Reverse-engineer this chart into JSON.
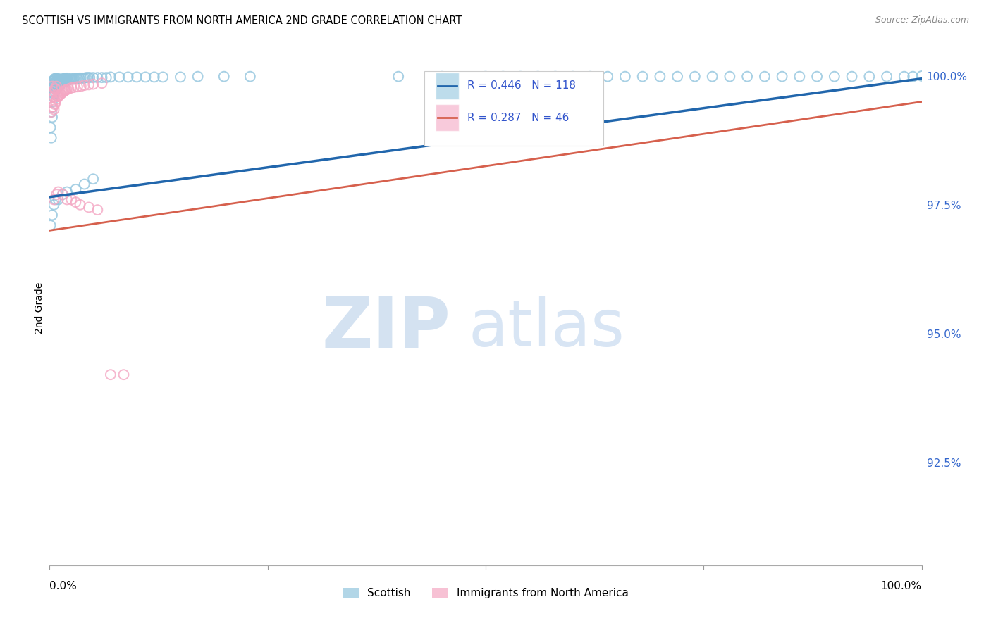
{
  "title": "SCOTTISH VS IMMIGRANTS FROM NORTH AMERICA 2ND GRADE CORRELATION CHART",
  "source": "Source: ZipAtlas.com",
  "ylabel": "2nd Grade",
  "legend_blue_label": "Scottish",
  "legend_pink_label": "Immigrants from North America",
  "r_blue": 0.446,
  "n_blue": 118,
  "r_pink": 0.287,
  "n_pink": 46,
  "blue_color": "#92c5de",
  "pink_color": "#f4a7c3",
  "trend_blue": "#2166ac",
  "trend_pink": "#d6604d",
  "background_color": "#ffffff",
  "grid_color": "#d0d0d0",
  "xlim": [
    0.0,
    1.0
  ],
  "ylim": [
    0.905,
    1.005
  ],
  "yticks": [
    1.0,
    0.975,
    0.95,
    0.925
  ],
  "ytick_labels": [
    "100.0%",
    "97.5%",
    "95.0%",
    "92.5%"
  ],
  "blue_trend_start_y": 0.9765,
  "blue_trend_end_y": 0.9995,
  "pink_trend_start_y": 0.97,
  "pink_trend_end_y": 0.995,
  "blue_scatter_x": [
    0.001,
    0.002,
    0.002,
    0.003,
    0.003,
    0.003,
    0.004,
    0.004,
    0.004,
    0.005,
    0.005,
    0.005,
    0.006,
    0.006,
    0.006,
    0.007,
    0.007,
    0.007,
    0.008,
    0.008,
    0.008,
    0.009,
    0.009,
    0.01,
    0.01,
    0.01,
    0.011,
    0.011,
    0.012,
    0.012,
    0.013,
    0.013,
    0.014,
    0.014,
    0.015,
    0.015,
    0.016,
    0.016,
    0.017,
    0.017,
    0.018,
    0.018,
    0.019,
    0.019,
    0.02,
    0.02,
    0.021,
    0.022,
    0.023,
    0.024,
    0.025,
    0.026,
    0.027,
    0.028,
    0.03,
    0.032,
    0.034,
    0.036,
    0.038,
    0.04,
    0.042,
    0.044,
    0.046,
    0.05,
    0.055,
    0.06,
    0.065,
    0.07,
    0.08,
    0.09,
    0.1,
    0.11,
    0.12,
    0.13,
    0.15,
    0.17,
    0.2,
    0.23,
    0.4,
    0.45,
    0.5,
    0.52,
    0.54,
    0.56,
    0.58,
    0.6,
    0.62,
    0.64,
    0.66,
    0.68,
    0.7,
    0.72,
    0.74,
    0.76,
    0.78,
    0.8,
    0.82,
    0.84,
    0.86,
    0.88,
    0.9,
    0.92,
    0.94,
    0.96,
    0.98,
    0.99,
    1.0,
    0.001,
    0.003,
    0.005,
    0.007,
    0.01,
    0.015,
    0.02,
    0.03,
    0.04,
    0.05
  ],
  "blue_scatter_y": [
    0.99,
    0.988,
    0.993,
    0.992,
    0.995,
    0.999,
    0.996,
    0.9985,
    0.999,
    0.9965,
    0.998,
    0.999,
    0.997,
    0.9985,
    0.9995,
    0.9975,
    0.9988,
    0.9995,
    0.9978,
    0.999,
    0.9995,
    0.9982,
    0.9992,
    0.998,
    0.999,
    0.9995,
    0.9985,
    0.9993,
    0.9982,
    0.9992,
    0.9985,
    0.9993,
    0.9987,
    0.9994,
    0.9988,
    0.9994,
    0.9988,
    0.9994,
    0.9989,
    0.9995,
    0.999,
    0.9995,
    0.9991,
    0.9995,
    0.9991,
    0.9996,
    0.9992,
    0.9993,
    0.9994,
    0.9994,
    0.9994,
    0.9994,
    0.9994,
    0.9995,
    0.9995,
    0.9995,
    0.9996,
    0.9996,
    0.9996,
    0.9996,
    0.9997,
    0.9997,
    0.9997,
    0.9997,
    0.9997,
    0.9997,
    0.9997,
    0.9998,
    0.9998,
    0.9998,
    0.9998,
    0.9998,
    0.9998,
    0.9998,
    0.9998,
    0.9999,
    0.9999,
    0.9999,
    0.9999,
    0.9999,
    0.9999,
    0.9999,
    0.9999,
    0.9999,
    0.9999,
    0.9999,
    0.9999,
    0.9999,
    0.9999,
    0.9999,
    0.9999,
    0.9999,
    0.9999,
    0.9999,
    0.9999,
    0.9999,
    0.9999,
    0.9999,
    0.9999,
    0.9999,
    0.9999,
    0.9999,
    0.9999,
    0.9999,
    0.9999,
    0.9999,
    1.0,
    0.971,
    0.973,
    0.975,
    0.976,
    0.976,
    0.977,
    0.9775,
    0.978,
    0.979,
    0.98
  ],
  "pink_scatter_x": [
    0.002,
    0.003,
    0.003,
    0.004,
    0.004,
    0.005,
    0.005,
    0.006,
    0.006,
    0.007,
    0.007,
    0.008,
    0.008,
    0.009,
    0.01,
    0.011,
    0.012,
    0.013,
    0.014,
    0.015,
    0.016,
    0.017,
    0.018,
    0.019,
    0.02,
    0.022,
    0.025,
    0.028,
    0.032,
    0.036,
    0.04,
    0.045,
    0.05,
    0.06,
    0.005,
    0.008,
    0.01,
    0.015,
    0.02,
    0.025,
    0.03,
    0.035,
    0.045,
    0.055,
    0.07,
    0.085
  ],
  "pink_scatter_y": [
    0.993,
    0.994,
    0.998,
    0.994,
    0.997,
    0.9935,
    0.996,
    0.9945,
    0.9975,
    0.995,
    0.9975,
    0.9955,
    0.998,
    0.996,
    0.996,
    0.9962,
    0.9964,
    0.9965,
    0.9967,
    0.9968,
    0.997,
    0.9971,
    0.9972,
    0.9973,
    0.9974,
    0.9975,
    0.9977,
    0.9978,
    0.9979,
    0.998,
    0.9982,
    0.9983,
    0.9984,
    0.9986,
    0.976,
    0.977,
    0.9775,
    0.977,
    0.976,
    0.976,
    0.9755,
    0.975,
    0.9745,
    0.974,
    0.942,
    0.942
  ]
}
